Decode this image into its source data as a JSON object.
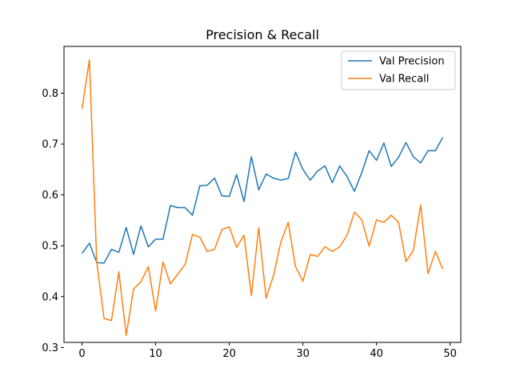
{
  "chart_data": {
    "type": "line",
    "title": "Precision & Recall",
    "xlabel": "",
    "ylabel": "",
    "xlim": [
      -2.45,
      51.45
    ],
    "ylim": [
      0.31,
      0.892
    ],
    "xticks": [
      0,
      10,
      20,
      30,
      40,
      50
    ],
    "yticks": [
      0.3,
      0.4,
      0.5,
      0.6,
      0.7,
      0.8
    ],
    "grid": false,
    "legend": "top-right",
    "x": [
      0,
      1,
      2,
      3,
      4,
      5,
      6,
      7,
      8,
      9,
      10,
      11,
      12,
      13,
      14,
      15,
      16,
      17,
      18,
      19,
      20,
      21,
      22,
      23,
      24,
      25,
      26,
      27,
      28,
      29,
      30,
      31,
      32,
      33,
      34,
      35,
      36,
      37,
      38,
      39,
      40,
      41,
      42,
      43,
      44,
      45,
      46,
      47,
      48,
      49
    ],
    "series": [
      {
        "name": "Val Precision",
        "color": "#1f77b4",
        "values": [
          0.485,
          0.505,
          0.467,
          0.466,
          0.493,
          0.487,
          0.536,
          0.483,
          0.539,
          0.498,
          0.513,
          0.513,
          0.579,
          0.575,
          0.575,
          0.56,
          0.618,
          0.619,
          0.633,
          0.598,
          0.597,
          0.64,
          0.587,
          0.675,
          0.61,
          0.641,
          0.633,
          0.629,
          0.632,
          0.684,
          0.65,
          0.629,
          0.647,
          0.657,
          0.624,
          0.657,
          0.636,
          0.607,
          0.644,
          0.687,
          0.668,
          0.702,
          0.656,
          0.674,
          0.703,
          0.675,
          0.663,
          0.687,
          0.687,
          0.713
        ]
      },
      {
        "name": "Val Recall",
        "color": "#ff7f0e",
        "values": [
          0.769,
          0.866,
          0.467,
          0.357,
          0.353,
          0.449,
          0.324,
          0.415,
          0.429,
          0.459,
          0.372,
          0.468,
          0.425,
          0.444,
          0.463,
          0.522,
          0.517,
          0.489,
          0.493,
          0.532,
          0.537,
          0.497,
          0.521,
          0.402,
          0.536,
          0.397,
          0.441,
          0.507,
          0.546,
          0.459,
          0.43,
          0.483,
          0.479,
          0.498,
          0.489,
          0.498,
          0.521,
          0.566,
          0.551,
          0.499,
          0.551,
          0.546,
          0.56,
          0.546,
          0.469,
          0.491,
          0.58,
          0.445,
          0.489,
          0.454
        ]
      }
    ]
  }
}
